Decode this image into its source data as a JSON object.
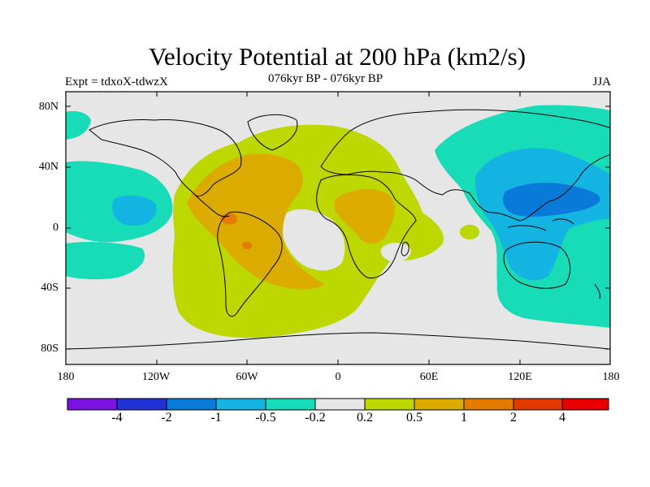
{
  "title": "Velocity Potential at 200 hPa (km2/s)",
  "subtitle_left": "Expt = tdxoX-tdwzX",
  "subtitle_center": "076kyr BP - 076kyr BP",
  "subtitle_right": "JJA",
  "lat_labels": [
    "80N",
    "40N",
    "0",
    "40S",
    "80S"
  ],
  "lon_labels": [
    "180",
    "120W",
    "60W",
    "0",
    "60E",
    "120E",
    "180"
  ],
  "colorbar": {
    "colors": [
      "#7a12e0",
      "#2132d6",
      "#0a7ad8",
      "#13b3e2",
      "#17dcb7",
      "#e6e6e6",
      "#bdd700",
      "#dcab00",
      "#e27b00",
      "#e23a00",
      "#e80000"
    ],
    "labels": [
      "-4",
      "-2",
      "-1",
      "-0.5",
      "-0.2",
      "0.2",
      "0.5",
      "1",
      "2",
      "4"
    ]
  }
}
